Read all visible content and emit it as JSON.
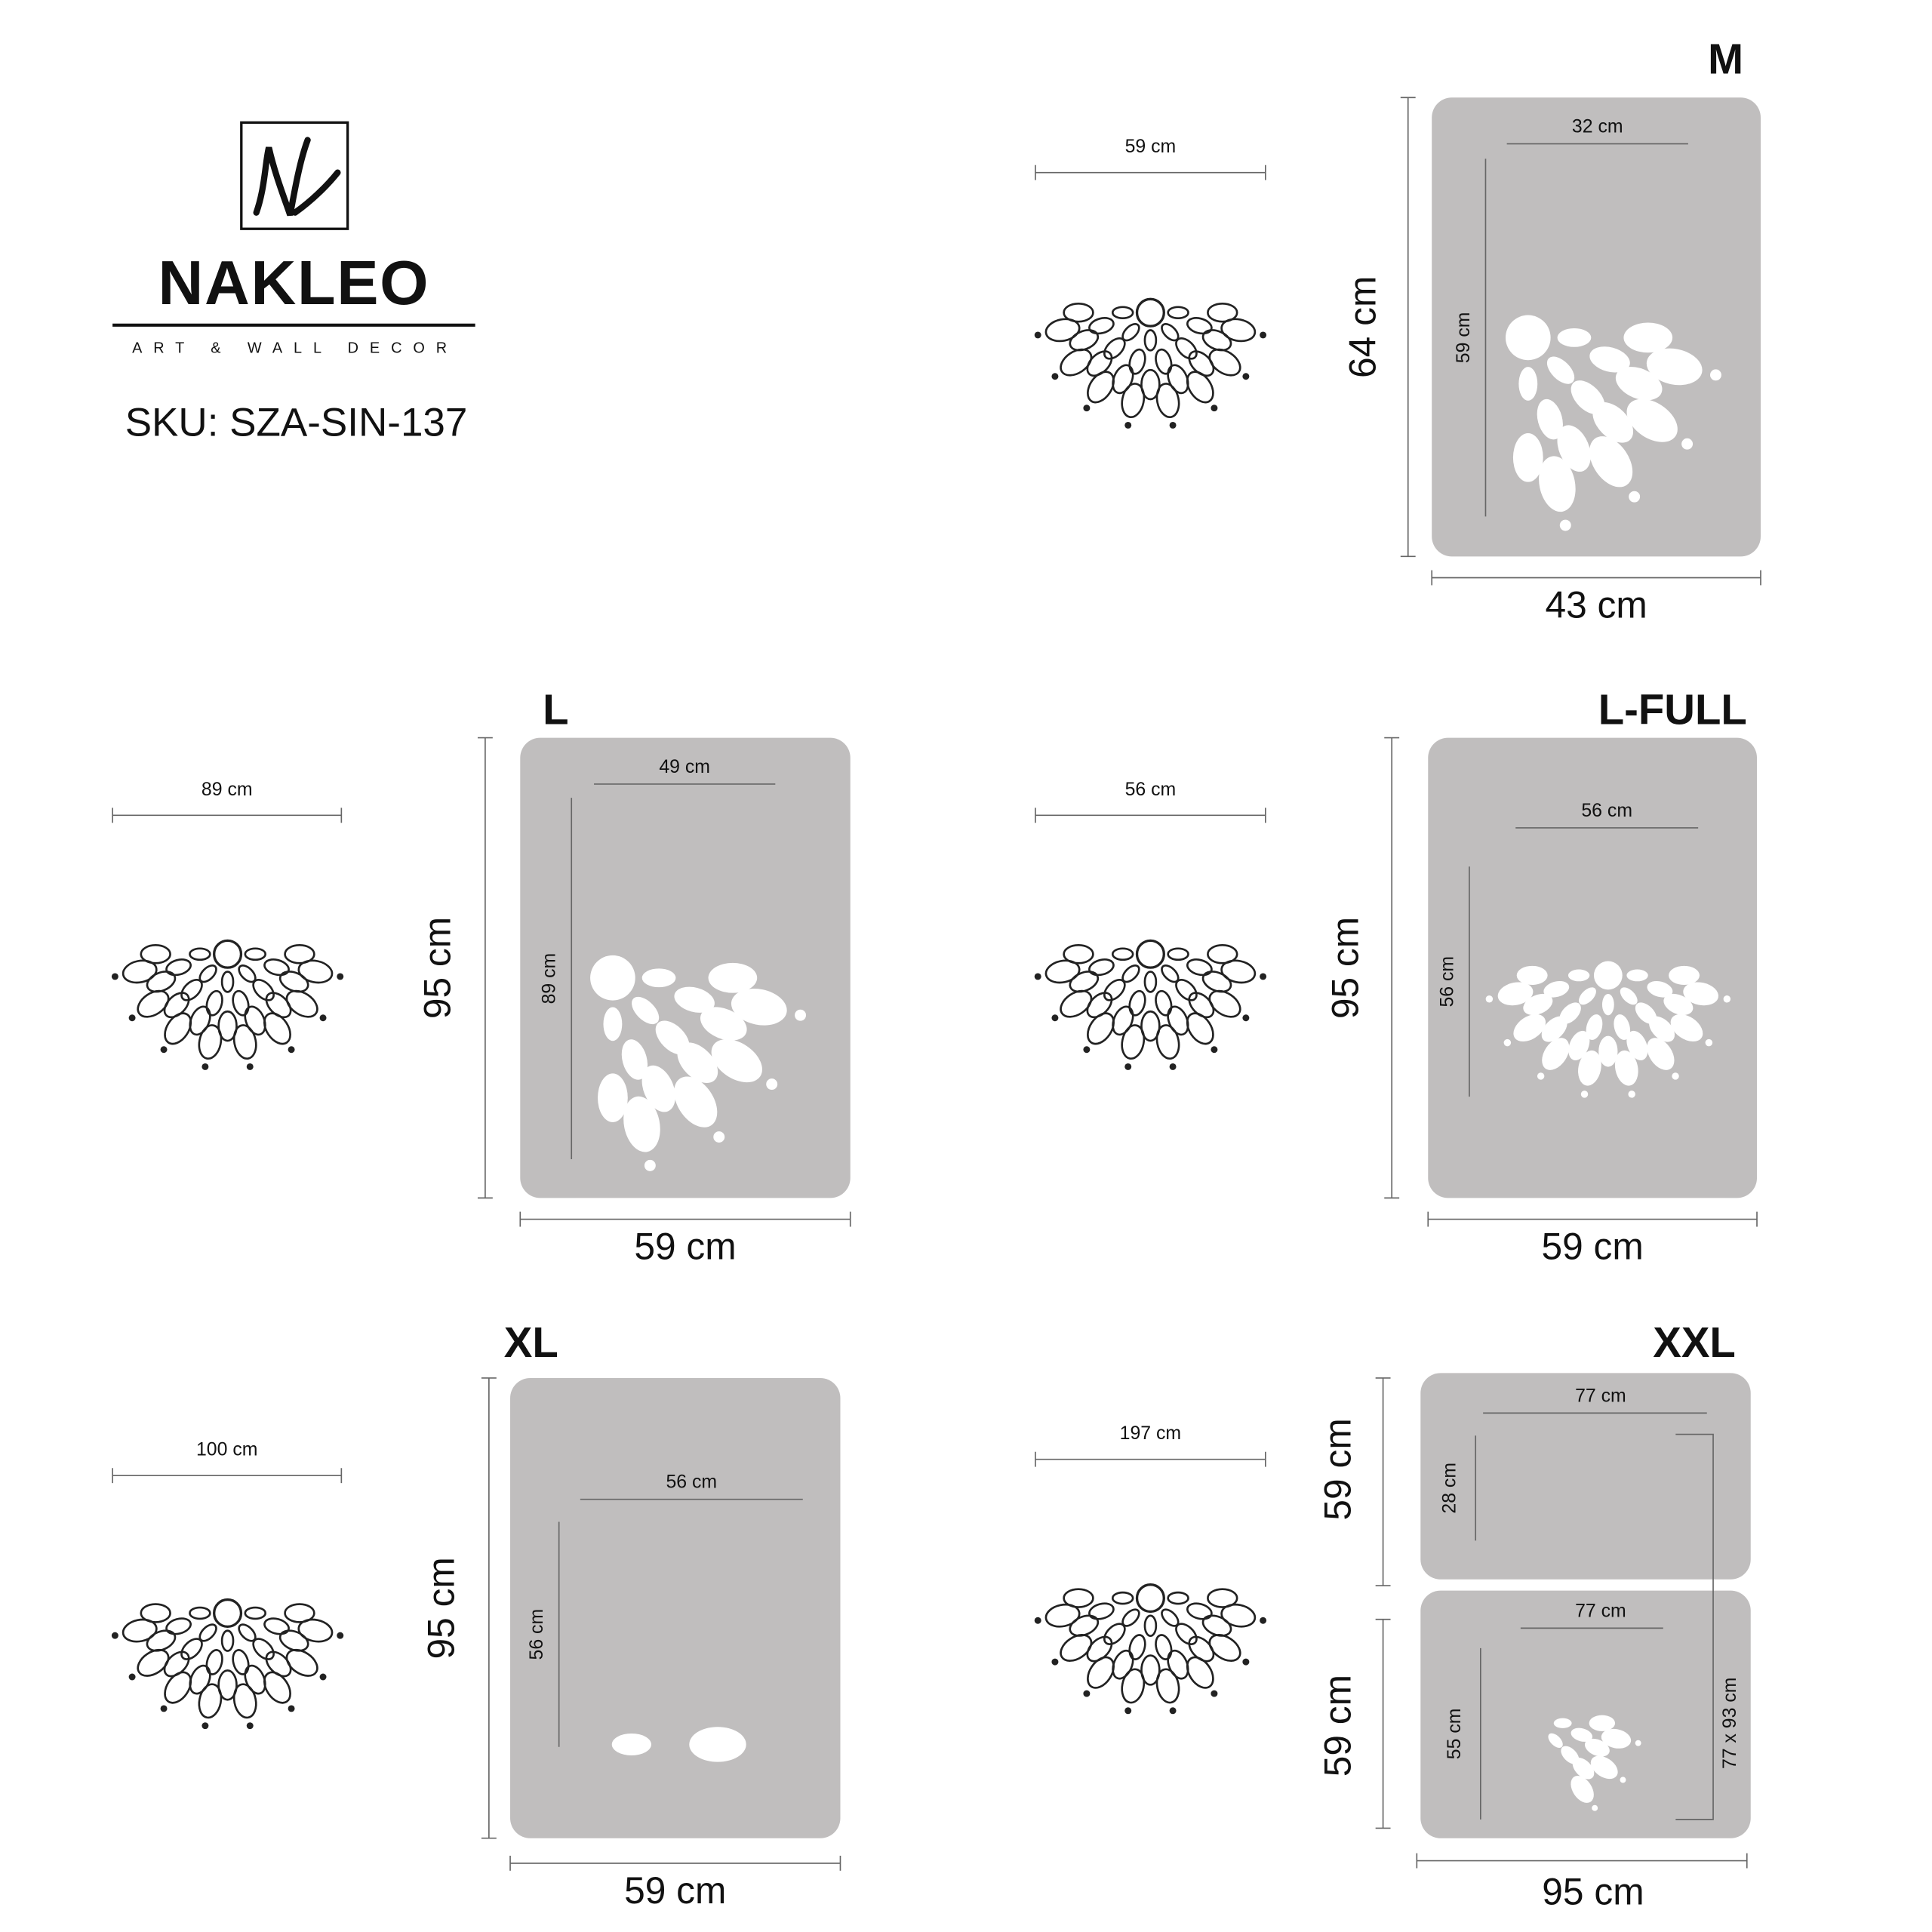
{
  "brand": {
    "name": "NAKLEO",
    "tagline": "ART & WALL DECOR"
  },
  "sku": "SKU: SZA-SIN-137",
  "sizes": [
    {
      "label": "M",
      "preview_width": "59 cm",
      "sheet_height": "64 cm",
      "sheet_width": "43 cm",
      "design_width": "32 cm",
      "design_height": "59 cm"
    },
    {
      "label": "L",
      "preview_width": "89 cm",
      "sheet_height": "95 cm",
      "sheet_width": "59 cm",
      "design_width": "49 cm",
      "design_height": "89 cm"
    },
    {
      "label": "L-FULL",
      "preview_width": "56 cm",
      "sheet_height": "95 cm",
      "sheet_width": "59 cm",
      "design_width": "56 cm",
      "design_height": "56 cm"
    },
    {
      "label": "XL",
      "preview_width": "100 cm",
      "sheet_height": "95 cm",
      "sheet_width": "59 cm",
      "design_width": "56 cm",
      "design_height": "56 cm"
    },
    {
      "label": "XXL",
      "preview_width": "197 cm",
      "sheet_width": "95 cm",
      "total": "77 x 93 cm",
      "sheets": [
        {
          "height": "59 cm",
          "design_width": "77 cm",
          "design_height": "28 cm"
        },
        {
          "height": "59 cm",
          "design_width": "77 cm",
          "design_height": "55 cm"
        }
      ]
    }
  ]
}
